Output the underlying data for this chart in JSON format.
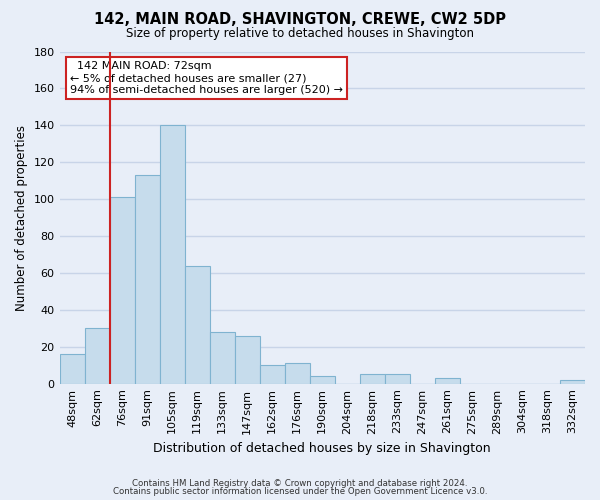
{
  "title": "142, MAIN ROAD, SHAVINGTON, CREWE, CW2 5DP",
  "subtitle": "Size of property relative to detached houses in Shavington",
  "xlabel": "Distribution of detached houses by size in Shavington",
  "ylabel": "Number of detached properties",
  "bin_labels": [
    "48sqm",
    "62sqm",
    "76sqm",
    "91sqm",
    "105sqm",
    "119sqm",
    "133sqm",
    "147sqm",
    "162sqm",
    "176sqm",
    "190sqm",
    "204sqm",
    "218sqm",
    "233sqm",
    "247sqm",
    "261sqm",
    "275sqm",
    "289sqm",
    "304sqm",
    "318sqm",
    "332sqm"
  ],
  "bar_heights": [
    16,
    30,
    101,
    113,
    140,
    64,
    28,
    26,
    10,
    11,
    4,
    0,
    5,
    5,
    0,
    3,
    0,
    0,
    0,
    0,
    2
  ],
  "bar_color": "#c6dcec",
  "bar_edge_color": "#7fb3d0",
  "reference_line_color": "#cc2222",
  "ylim": [
    0,
    180
  ],
  "yticks": [
    0,
    20,
    40,
    60,
    80,
    100,
    120,
    140,
    160,
    180
  ],
  "annotation_title": "142 MAIN ROAD: 72sqm",
  "annotation_line1": "← 5% of detached houses are smaller (27)",
  "annotation_line2": "94% of semi-detached houses are larger (520) →",
  "annotation_box_color": "white",
  "annotation_box_edge_color": "#cc2222",
  "footer_line1": "Contains HM Land Registry data © Crown copyright and database right 2024.",
  "footer_line2": "Contains public sector information licensed under the Open Government Licence v3.0.",
  "background_color": "#e8eef8",
  "grid_color": "#c8d4e8",
  "reference_bar_index": 2
}
